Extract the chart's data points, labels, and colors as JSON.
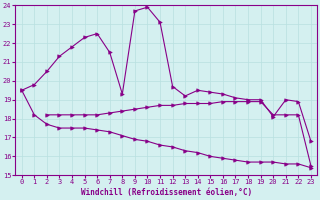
{
  "xlabel": "Windchill (Refroidissement éolien,°C)",
  "background_color": "#d4f0f0",
  "line_color": "#880088",
  "xlim": [
    -0.5,
    23.5
  ],
  "ylim": [
    15,
    24
  ],
  "yticks": [
    15,
    16,
    17,
    18,
    19,
    20,
    21,
    22,
    23,
    24
  ],
  "xticks": [
    0,
    1,
    2,
    3,
    4,
    5,
    6,
    7,
    8,
    9,
    10,
    11,
    12,
    13,
    14,
    15,
    16,
    17,
    18,
    19,
    20,
    21,
    22,
    23
  ],
  "line1_x": [
    0,
    1,
    2,
    3,
    4,
    5,
    6,
    7,
    8,
    9,
    10,
    11,
    12,
    13,
    14,
    15,
    16,
    17,
    18,
    19,
    20,
    21,
    22,
    23
  ],
  "line1_y": [
    19.5,
    19.8,
    20.5,
    21.3,
    21.8,
    22.3,
    22.5,
    21.5,
    19.3,
    23.7,
    23.9,
    23.1,
    19.7,
    19.2,
    19.5,
    19.4,
    19.3,
    19.1,
    19.0,
    19.0,
    18.1,
    19.0,
    18.9,
    16.8
  ],
  "line2_x": [
    2,
    3,
    4,
    5,
    6,
    7,
    8,
    9,
    10,
    11,
    12,
    13,
    14,
    15,
    16,
    17,
    18,
    19,
    20,
    21,
    22,
    23
  ],
  "line2_y": [
    18.2,
    18.2,
    18.2,
    18.2,
    18.2,
    18.3,
    18.4,
    18.5,
    18.6,
    18.7,
    18.7,
    18.8,
    18.8,
    18.8,
    18.9,
    18.9,
    18.9,
    18.9,
    18.2,
    18.2,
    18.2,
    15.5
  ],
  "line3_x": [
    0,
    1,
    2,
    3,
    4,
    5,
    6,
    7,
    8,
    9,
    10,
    11,
    12,
    13,
    14,
    15,
    16,
    17,
    18,
    19,
    20,
    21,
    22,
    23
  ],
  "line3_y": [
    19.5,
    18.2,
    17.7,
    17.5,
    17.5,
    17.5,
    17.4,
    17.3,
    17.1,
    16.9,
    16.8,
    16.6,
    16.5,
    16.3,
    16.2,
    16.0,
    15.9,
    15.8,
    15.7,
    15.7,
    15.7,
    15.6,
    15.6,
    15.4
  ]
}
